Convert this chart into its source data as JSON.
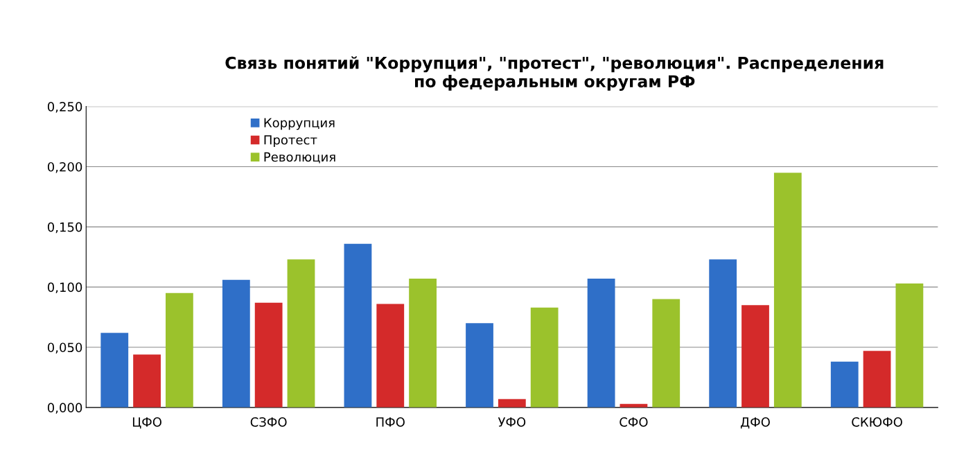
{
  "chart_data": {
    "type": "bar",
    "title": "Связь понятий \"Коррупция\", \"протест\", \"революция\". Распределения\nпо федеральным округам РФ",
    "categories": [
      "ЦФО",
      "СЗФО",
      "ПФО",
      "УФО",
      "СФО",
      "ДФО",
      "СКЮФО"
    ],
    "series": [
      {
        "name": "Коррупция",
        "color": "#2f6fc8",
        "values": [
          0.062,
          0.106,
          0.136,
          0.07,
          0.107,
          0.123,
          0.038
        ]
      },
      {
        "name": "Протест",
        "color": "#d42a2a",
        "values": [
          0.044,
          0.087,
          0.086,
          0.007,
          0.003,
          0.085,
          0.047
        ]
      },
      {
        "name": "Революция",
        "color": "#9bc22c",
        "values": [
          0.095,
          0.123,
          0.107,
          0.083,
          0.09,
          0.195,
          0.103
        ]
      }
    ],
    "ylim": [
      0,
      0.25
    ],
    "yticks": [
      {
        "value": 0,
        "label": "0,000"
      },
      {
        "value": 0.05,
        "label": "0,050"
      },
      {
        "value": 0.1,
        "label": "0,100"
      },
      {
        "value": 0.15,
        "label": "0,150"
      },
      {
        "value": 0.2,
        "label": "0,200"
      },
      {
        "value": 0.25,
        "label": "0,250"
      }
    ],
    "grid": "y",
    "legend": "top left"
  }
}
